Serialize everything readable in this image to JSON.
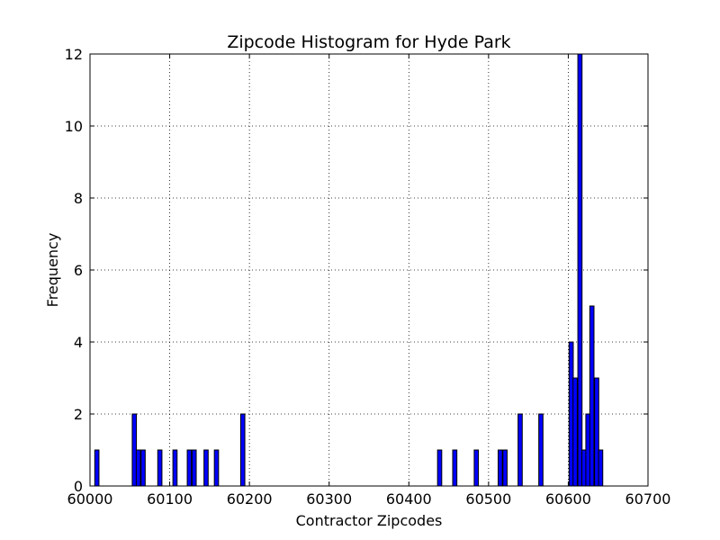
{
  "chart_data": {
    "type": "bar",
    "title": "Zipcode Histogram for Hyde Park",
    "xlabel": "Contractor Zipcodes",
    "ylabel": "Frequency",
    "xlim": [
      60000,
      60700
    ],
    "ylim": [
      0,
      12
    ],
    "xticks": [
      "60000",
      "60100",
      "60200",
      "60300",
      "60400",
      "60500",
      "60600",
      "60700"
    ],
    "yticks": [
      "0",
      "2",
      "4",
      "6",
      "8",
      "10",
      "12"
    ],
    "grid": true,
    "bin_width": 5.25,
    "bar_color": "#0000ff",
    "bins": [
      {
        "x": 60006,
        "count": 1
      },
      {
        "x": 60053,
        "count": 2
      },
      {
        "x": 60058,
        "count": 1
      },
      {
        "x": 60064,
        "count": 1
      },
      {
        "x": 60085,
        "count": 1
      },
      {
        "x": 60104,
        "count": 1
      },
      {
        "x": 60122,
        "count": 1
      },
      {
        "x": 60128,
        "count": 1
      },
      {
        "x": 60143,
        "count": 1
      },
      {
        "x": 60156,
        "count": 1
      },
      {
        "x": 60189,
        "count": 2
      },
      {
        "x": 60436,
        "count": 1
      },
      {
        "x": 60455,
        "count": 1
      },
      {
        "x": 60482,
        "count": 1
      },
      {
        "x": 60512,
        "count": 1
      },
      {
        "x": 60518,
        "count": 1
      },
      {
        "x": 60537,
        "count": 2
      },
      {
        "x": 60563,
        "count": 2
      },
      {
        "x": 60601,
        "count": 4
      },
      {
        "x": 60606,
        "count": 3
      },
      {
        "x": 60612,
        "count": 12
      },
      {
        "x": 60617,
        "count": 1
      },
      {
        "x": 60622,
        "count": 2
      },
      {
        "x": 60627,
        "count": 5
      },
      {
        "x": 60633,
        "count": 3
      },
      {
        "x": 60638,
        "count": 1
      }
    ]
  }
}
